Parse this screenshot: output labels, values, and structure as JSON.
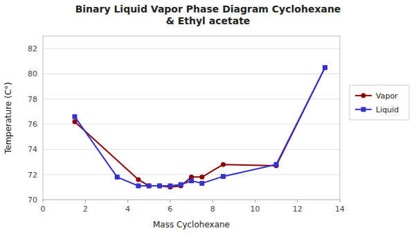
{
  "chart_data": {
    "type": "line",
    "title": "Binary Liquid Vapor Phase Diagram Cyclohexane\n& Ethyl acetate",
    "x_label": "Mass Cyclohexane",
    "y_label": "Temperature (C°)",
    "xlim": [
      0,
      14
    ],
    "ylim": [
      70,
      83
    ],
    "xticks": [
      0,
      2,
      4,
      6,
      8,
      10,
      12,
      14
    ],
    "yticks": [
      70,
      72,
      74,
      76,
      78,
      80,
      82
    ],
    "grid": true,
    "legend": "right",
    "series": [
      {
        "name": "Vapor",
        "color": "#8B0000",
        "marker": "circle",
        "x": [
          1.5,
          4.5,
          5.0,
          5.5,
          6.0,
          6.5,
          7.0,
          7.5,
          8.5,
          11.0,
          13.3
        ],
        "values": [
          76.2,
          71.6,
          71.1,
          71.1,
          71.0,
          71.1,
          71.8,
          71.8,
          72.8,
          72.7,
          80.5
        ]
      },
      {
        "name": "Liquid",
        "color": "#3333CC",
        "marker": "square",
        "x": [
          1.5,
          3.5,
          4.5,
          5.0,
          5.5,
          6.0,
          6.5,
          7.0,
          7.5,
          8.5,
          11.0,
          13.3
        ],
        "values": [
          76.6,
          71.8,
          71.1,
          71.1,
          71.1,
          71.1,
          71.2,
          71.5,
          71.3,
          71.85,
          72.8,
          80.5
        ]
      }
    ]
  }
}
